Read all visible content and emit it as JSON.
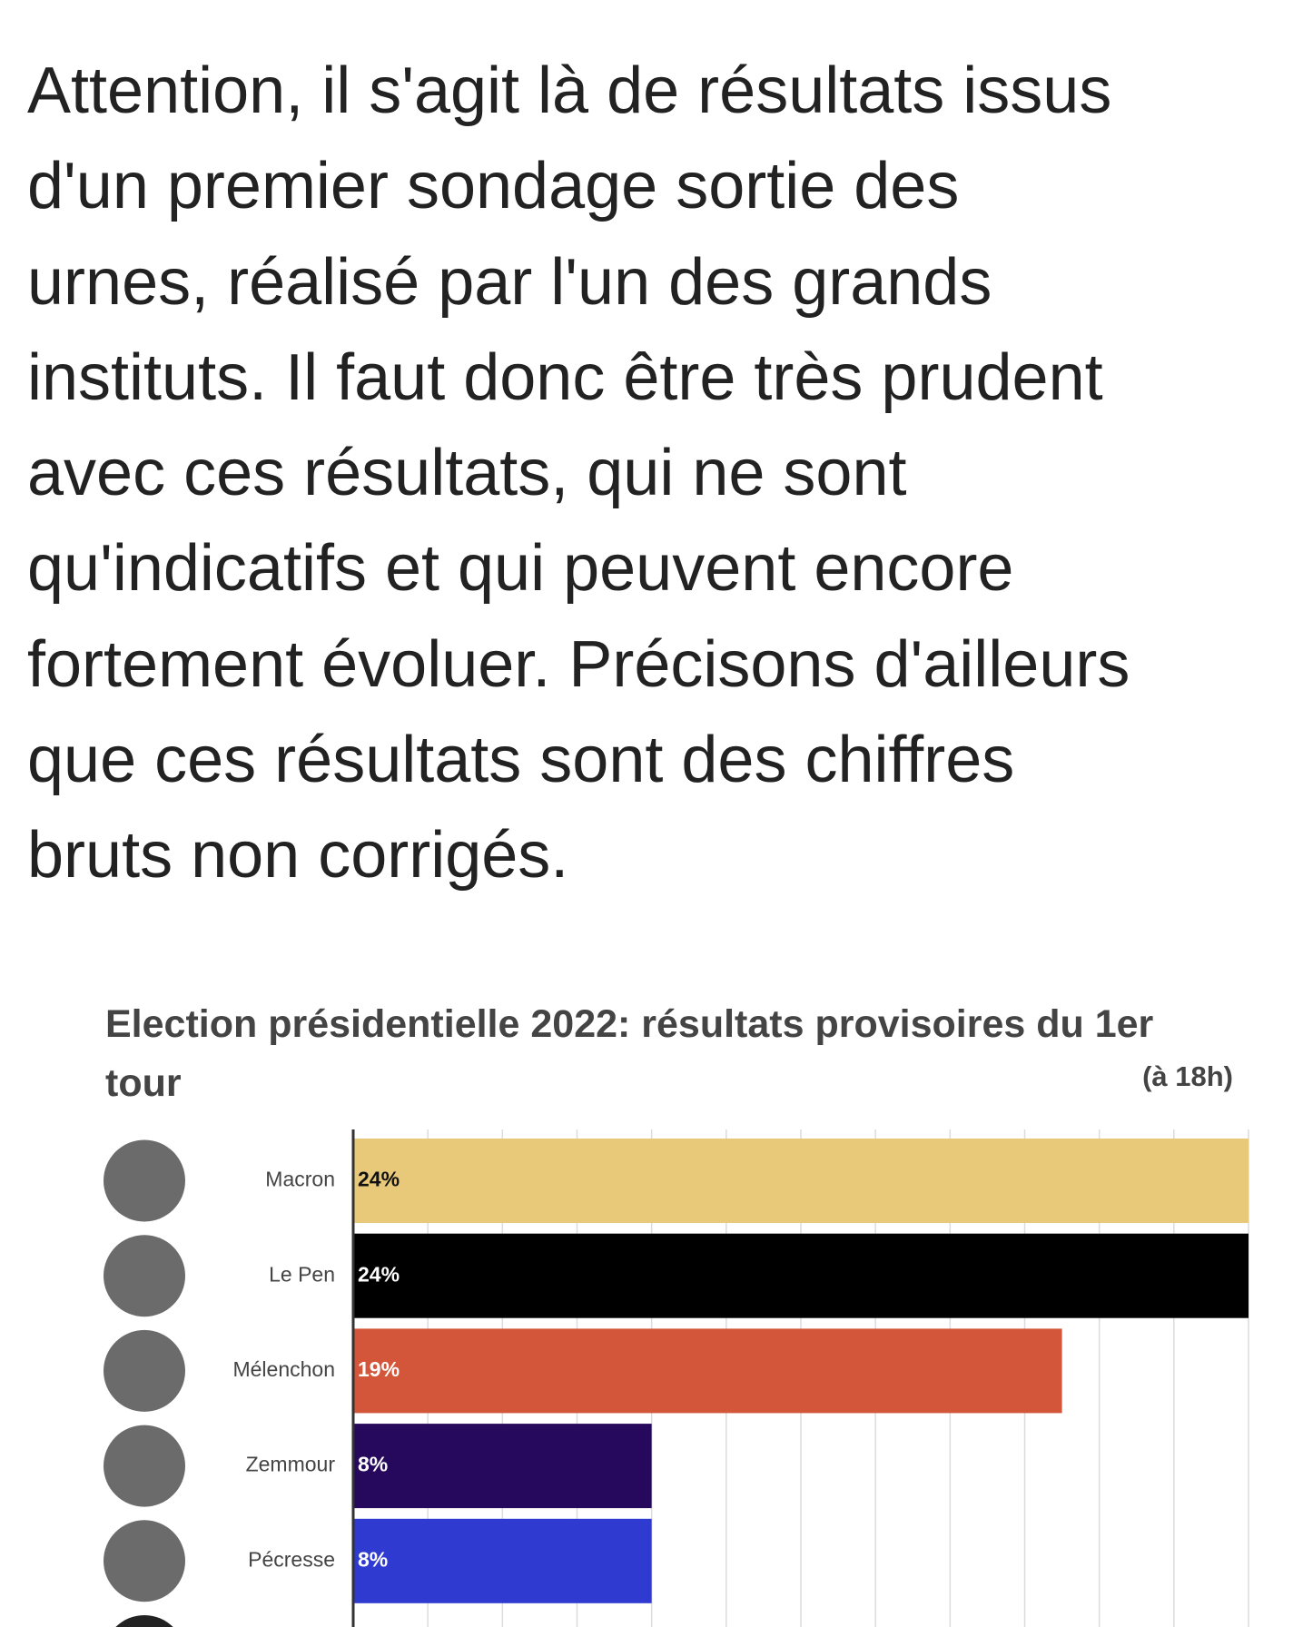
{
  "paragraph_lines": [
    "Attention, il s'agit là de résultats issus",
    "d'un premier sondage sortie des",
    "urnes, réalisé par l'un des grands",
    "instituts. Il faut donc être très prudent",
    "avec ces résultats, qui ne sont",
    "qu'indicatifs et qui peuvent encore",
    "fortement évoluer. Précisons d'ailleurs",
    "que ces résultats sont des chiffres",
    "bruts non corrigés."
  ],
  "chart_data": {
    "type": "bar",
    "orientation": "horizontal",
    "title": "Election présidentielle 2022: résultats provisoires du 1er tour",
    "subtitle": "(à 18h)",
    "categories": [
      "Macron",
      "Le Pen",
      "Mélenchon",
      "Zemmour",
      "Pécresse"
    ],
    "values": [
      24,
      24,
      19,
      8,
      8
    ],
    "value_labels": [
      "24%",
      "24%",
      "19%",
      "8%",
      "8%"
    ],
    "colors": [
      "#e8c97a",
      "#000000",
      "#d4563a",
      "#26095c",
      "#2f3ad0"
    ],
    "xlim": [
      0,
      24
    ],
    "xticks": [
      0,
      2,
      4,
      6,
      8,
      10,
      12,
      14,
      16,
      18,
      20,
      22,
      24
    ],
    "grid": true
  }
}
